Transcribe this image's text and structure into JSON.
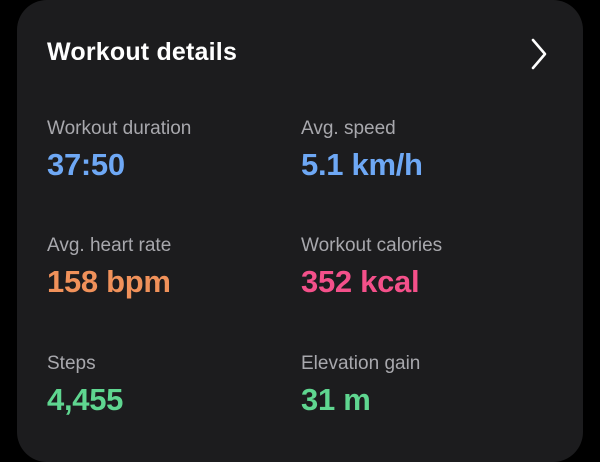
{
  "card": {
    "title": "Workout details",
    "chevron_icon": "chevron-right-icon"
  },
  "metrics": [
    {
      "label": "Workout duration",
      "value": "37:50",
      "color": "#6ea8f5"
    },
    {
      "label": "Avg. speed",
      "value": "5.1 km/h",
      "color": "#6ea8f5"
    },
    {
      "label": "Avg. heart rate",
      "value": "158 bpm",
      "color": "#f0915a"
    },
    {
      "label": "Workout calories",
      "value": "352 kcal",
      "color": "#f4508a"
    },
    {
      "label": "Steps",
      "value": "4,455",
      "color": "#5fd690"
    },
    {
      "label": "Elevation gain",
      "value": "31 m",
      "color": "#5fd690"
    }
  ]
}
